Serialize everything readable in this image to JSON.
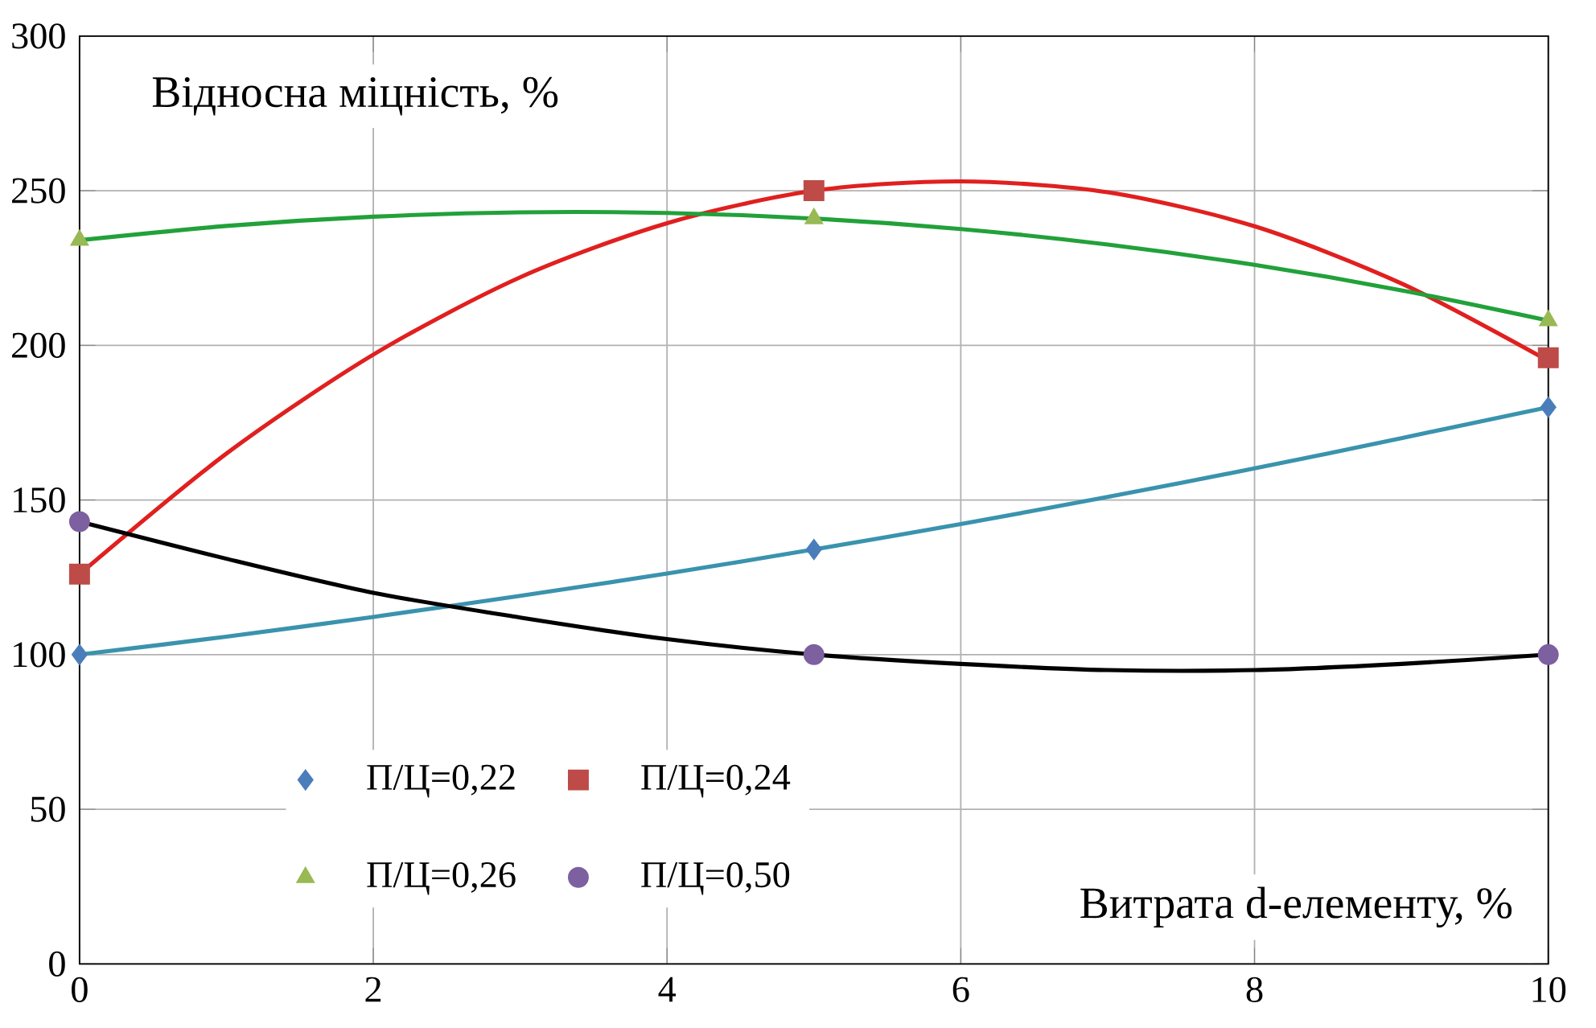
{
  "chart_data": {
    "type": "scatter",
    "xlabel": "Витрата d-елементу, %",
    "ylabel": "Відносна міцність, %",
    "xlim": [
      0,
      10
    ],
    "ylim": [
      0,
      300
    ],
    "xticks": [
      0,
      2,
      4,
      6,
      8,
      10
    ],
    "yticks": [
      0,
      50,
      100,
      150,
      200,
      250,
      300
    ],
    "grid": true,
    "legend": "bottom",
    "series": [
      {
        "type": "line",
        "color": "#3a93ad",
        "marker": "none",
        "x": [
          0,
          1,
          2,
          3,
          4,
          5,
          6,
          7,
          8,
          9,
          10
        ],
        "values": [
          100,
          105.8,
          112.2,
          119,
          126.2,
          134,
          142.2,
          151,
          160.2,
          170,
          180
        ]
      },
      {
        "type": "line",
        "color": "#e0201f",
        "marker": "none",
        "x": [
          0,
          1,
          2,
          3,
          4,
          5,
          6,
          7,
          8,
          9,
          10
        ],
        "values": [
          126,
          165,
          197,
          222,
          239.5,
          250,
          253,
          249.5,
          238.5,
          220,
          195
        ]
      },
      {
        "type": "line",
        "color": "#22a13a",
        "marker": "none",
        "x": [
          0,
          1,
          2,
          3,
          4,
          5,
          6,
          7,
          8,
          9,
          10
        ],
        "values": [
          234,
          238.6,
          241.6,
          243,
          242.8,
          241,
          237.6,
          232.6,
          226,
          217.8,
          208
        ]
      },
      {
        "type": "line",
        "color": "#000000",
        "marker": "none",
        "x": [
          0,
          1,
          2,
          3,
          4,
          5,
          6,
          7,
          8,
          9,
          10
        ],
        "values": [
          143,
          131,
          120,
          112,
          105,
          100,
          97,
          95,
          95,
          97,
          100
        ]
      },
      {
        "name": "П/Ц=0,22",
        "color": "#4a7ebb",
        "marker": "diamond",
        "x": [
          0,
          5,
          10
        ],
        "values": [
          100,
          134,
          180
        ]
      },
      {
        "name": "П/Ц=0,24",
        "color": "#be4b48",
        "marker": "square",
        "x": [
          0,
          5,
          10
        ],
        "values": [
          126,
          250,
          196
        ]
      },
      {
        "name": "П/Ц=0,26",
        "color": "#98b954",
        "marker": "triangle",
        "x": [
          0,
          5,
          10
        ],
        "values": [
          234,
          241,
          208
        ]
      },
      {
        "name": "П/Ц=0,50",
        "color": "#7d60a0",
        "marker": "circle",
        "x": [
          0,
          5,
          10
        ],
        "values": [
          143,
          100,
          100
        ]
      }
    ]
  }
}
